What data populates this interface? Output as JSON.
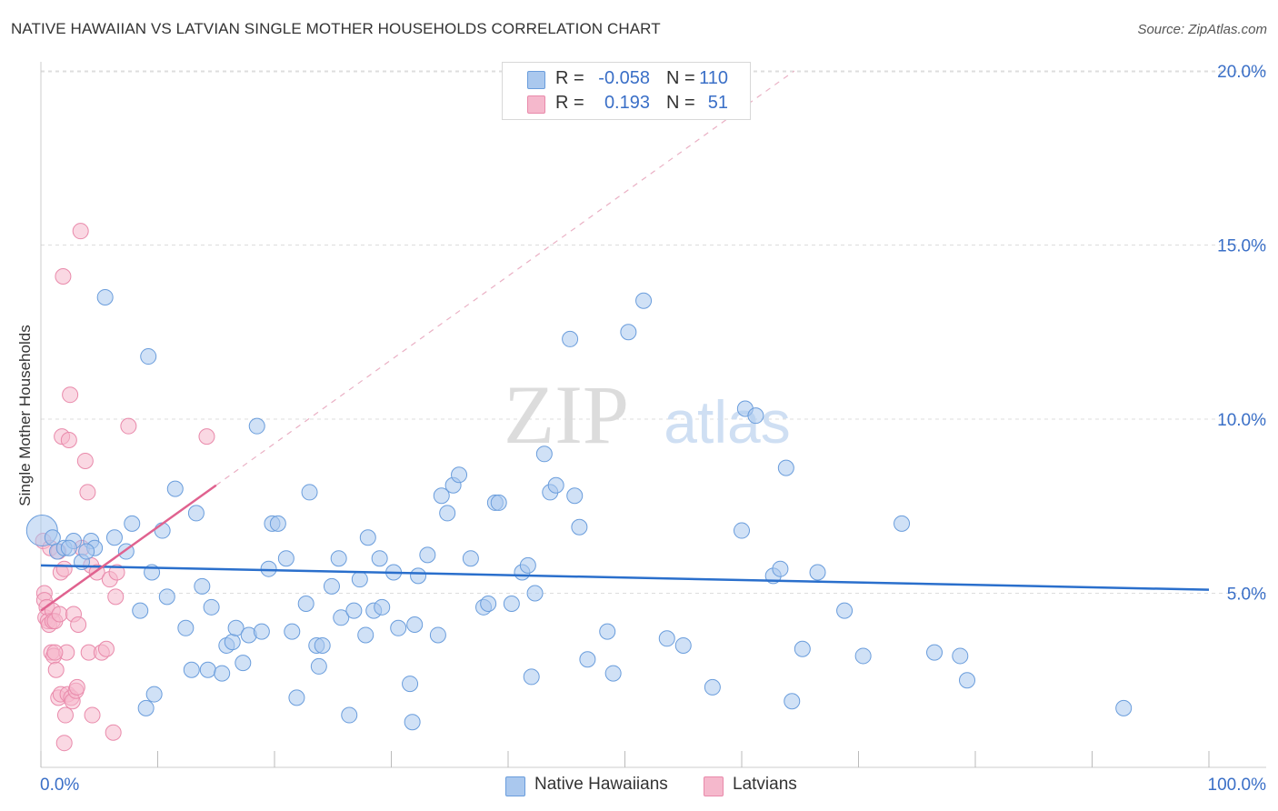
{
  "title": "NATIVE HAWAIIAN VS LATVIAN SINGLE MOTHER HOUSEHOLDS CORRELATION CHART",
  "source": "Source: ZipAtlas.com",
  "watermark": {
    "zip": "ZIP",
    "atlas": "atlas"
  },
  "colors": {
    "blue_fill": "#aac8ee",
    "blue_stroke": "#6a9ddc",
    "blue_line": "#2a6fcc",
    "pink_fill": "#f5b8cc",
    "pink_stroke": "#e98aab",
    "pink_line": "#e0628f",
    "axis_text": "#3a6fc7",
    "grid": "#dddddd"
  },
  "legend_top": [
    {
      "series": "Native Hawaiians",
      "r_label": "R =",
      "r_value": "-0.058",
      "n_label": "N =",
      "n_value": "110"
    },
    {
      "series": "Latvians",
      "r_label": "R =",
      "r_value": "0.193",
      "n_label": "N =",
      "n_value": "51"
    }
  ],
  "legend_bottom": [
    "Native Hawaiians",
    "Latvians"
  ],
  "chart_data": {
    "type": "scatter",
    "title": "NATIVE HAWAIIAN VS LATVIAN SINGLE MOTHER HOUSEHOLDS CORRELATION CHART",
    "xlabel": "",
    "ylabel": "Single Mother Households",
    "xlim": [
      0,
      100
    ],
    "ylim": [
      0,
      20.5
    ],
    "x_tick_labels": [
      "0.0%",
      "100.0%"
    ],
    "y_ticks": [
      5,
      10,
      15,
      20
    ],
    "y_tick_labels": [
      "5.0%",
      "10.0%",
      "15.0%",
      "20.0%"
    ],
    "grid": true,
    "legend_position": "top-center",
    "series": [
      {
        "name": "Native Hawaiians",
        "color": "#aac8ee",
        "trend": {
          "x": [
            0,
            100
          ],
          "y": [
            5.8,
            5.1
          ]
        },
        "points": [
          [
            0.1,
            6.8
          ],
          [
            1.0,
            6.6
          ],
          [
            1.4,
            6.2
          ],
          [
            2.0,
            6.3
          ],
          [
            2.8,
            6.5
          ],
          [
            2.4,
            6.3
          ],
          [
            3.5,
            5.9
          ],
          [
            4.3,
            6.5
          ],
          [
            4.6,
            6.3
          ],
          [
            3.9,
            6.2
          ],
          [
            5.5,
            13.5
          ],
          [
            6.3,
            6.6
          ],
          [
            7.3,
            6.2
          ],
          [
            7.8,
            7.0
          ],
          [
            8.5,
            4.5
          ],
          [
            9.0,
            1.7
          ],
          [
            9.2,
            11.8
          ],
          [
            9.5,
            5.6
          ],
          [
            9.7,
            2.1
          ],
          [
            10.4,
            6.8
          ],
          [
            10.8,
            4.9
          ],
          [
            11.5,
            8.0
          ],
          [
            12.4,
            4.0
          ],
          [
            12.9,
            2.8
          ],
          [
            13.3,
            7.3
          ],
          [
            13.8,
            5.2
          ],
          [
            14.3,
            2.8
          ],
          [
            14.6,
            4.6
          ],
          [
            15.5,
            2.7
          ],
          [
            15.9,
            3.5
          ],
          [
            16.4,
            3.6
          ],
          [
            16.7,
            4.0
          ],
          [
            17.3,
            3.0
          ],
          [
            17.8,
            3.8
          ],
          [
            18.5,
            9.8
          ],
          [
            18.9,
            3.9
          ],
          [
            19.5,
            5.7
          ],
          [
            19.8,
            7.0
          ],
          [
            20.3,
            7.0
          ],
          [
            21.0,
            6.0
          ],
          [
            21.5,
            3.9
          ],
          [
            21.9,
            2.0
          ],
          [
            22.7,
            4.7
          ],
          [
            23.0,
            7.9
          ],
          [
            23.6,
            3.5
          ],
          [
            23.8,
            2.9
          ],
          [
            24.1,
            3.5
          ],
          [
            24.9,
            5.2
          ],
          [
            25.5,
            6.0
          ],
          [
            25.7,
            4.3
          ],
          [
            26.4,
            1.5
          ],
          [
            26.8,
            4.5
          ],
          [
            27.3,
            5.4
          ],
          [
            27.8,
            3.8
          ],
          [
            28.0,
            6.6
          ],
          [
            28.5,
            4.5
          ],
          [
            29.0,
            6.0
          ],
          [
            29.2,
            4.6
          ],
          [
            30.2,
            5.6
          ],
          [
            30.6,
            4.0
          ],
          [
            31.6,
            2.4
          ],
          [
            31.8,
            1.3
          ],
          [
            32.0,
            4.1
          ],
          [
            32.3,
            5.5
          ],
          [
            33.1,
            6.1
          ],
          [
            34.0,
            3.8
          ],
          [
            34.3,
            7.8
          ],
          [
            34.8,
            7.3
          ],
          [
            35.3,
            8.1
          ],
          [
            35.8,
            8.4
          ],
          [
            36.8,
            6.0
          ],
          [
            37.9,
            4.6
          ],
          [
            38.3,
            4.7
          ],
          [
            38.9,
            7.6
          ],
          [
            39.2,
            7.6
          ],
          [
            40.3,
            4.7
          ],
          [
            41.2,
            5.6
          ],
          [
            41.7,
            5.8
          ],
          [
            42.0,
            2.6
          ],
          [
            42.3,
            5.0
          ],
          [
            43.1,
            9.0
          ],
          [
            43.6,
            7.9
          ],
          [
            44.1,
            8.1
          ],
          [
            45.3,
            12.3
          ],
          [
            45.7,
            7.8
          ],
          [
            46.1,
            6.9
          ],
          [
            46.8,
            3.1
          ],
          [
            49.0,
            2.7
          ],
          [
            50.3,
            12.5
          ],
          [
            51.6,
            13.4
          ],
          [
            53.6,
            3.7
          ],
          [
            55.0,
            3.5
          ],
          [
            57.5,
            2.3
          ],
          [
            60.0,
            6.8
          ],
          [
            60.3,
            10.3
          ],
          [
            61.2,
            10.1
          ],
          [
            62.7,
            5.5
          ],
          [
            63.3,
            5.7
          ],
          [
            63.8,
            8.6
          ],
          [
            64.3,
            1.9
          ],
          [
            65.2,
            3.4
          ],
          [
            66.5,
            5.6
          ],
          [
            68.8,
            4.5
          ],
          [
            70.4,
            3.2
          ],
          [
            73.7,
            7.0
          ],
          [
            76.5,
            3.3
          ],
          [
            78.7,
            3.2
          ],
          [
            79.3,
            2.5
          ],
          [
            92.7,
            1.7
          ],
          [
            48.5,
            3.9
          ]
        ]
      },
      {
        "name": "Latvians",
        "color": "#f5b8cc",
        "trend": {
          "x": [
            0,
            15
          ],
          "y": [
            4.5,
            8.1
          ]
        },
        "dashed_extension": {
          "x": [
            15,
            64.5
          ],
          "y": [
            8.1,
            20.0
          ]
        },
        "points": [
          [
            0.2,
            6.5
          ],
          [
            0.3,
            5.0
          ],
          [
            0.3,
            4.8
          ],
          [
            0.4,
            4.3
          ],
          [
            0.5,
            4.6
          ],
          [
            0.6,
            4.2
          ],
          [
            0.7,
            4.1
          ],
          [
            0.8,
            6.3
          ],
          [
            0.9,
            3.3
          ],
          [
            1.0,
            4.5
          ],
          [
            1.0,
            4.2
          ],
          [
            1.1,
            3.2
          ],
          [
            1.2,
            4.2
          ],
          [
            1.3,
            2.8
          ],
          [
            1.5,
            2.0
          ],
          [
            1.5,
            6.2
          ],
          [
            1.6,
            4.4
          ],
          [
            1.7,
            5.6
          ],
          [
            1.7,
            2.1
          ],
          [
            1.8,
            9.5
          ],
          [
            1.9,
            14.1
          ],
          [
            2.0,
            5.7
          ],
          [
            2.0,
            0.7
          ],
          [
            2.1,
            1.5
          ],
          [
            2.2,
            3.3
          ],
          [
            2.3,
            2.1
          ],
          [
            2.4,
            9.4
          ],
          [
            2.5,
            10.7
          ],
          [
            2.6,
            2.0
          ],
          [
            2.7,
            1.9
          ],
          [
            2.8,
            4.4
          ],
          [
            3.0,
            2.2
          ],
          [
            3.1,
            2.3
          ],
          [
            3.2,
            4.1
          ],
          [
            3.4,
            15.4
          ],
          [
            3.5,
            6.3
          ],
          [
            3.8,
            8.8
          ],
          [
            4.0,
            7.9
          ],
          [
            4.1,
            3.3
          ],
          [
            4.3,
            5.8
          ],
          [
            4.4,
            1.5
          ],
          [
            4.8,
            5.6
          ],
          [
            5.2,
            3.3
          ],
          [
            5.6,
            3.4
          ],
          [
            5.9,
            5.4
          ],
          [
            6.2,
            1.0
          ],
          [
            6.4,
            4.9
          ],
          [
            6.5,
            5.6
          ],
          [
            7.5,
            9.8
          ],
          [
            14.2,
            9.5
          ],
          [
            1.2,
            3.3
          ]
        ]
      }
    ]
  }
}
